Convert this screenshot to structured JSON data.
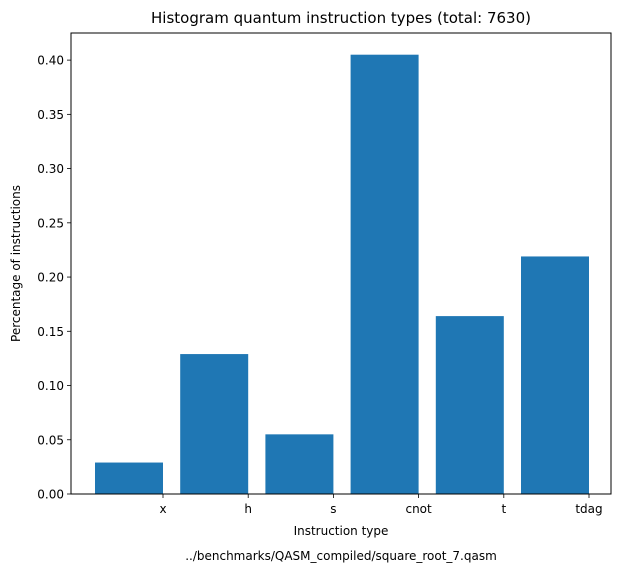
{
  "chart_data": {
    "type": "bar",
    "title": "Histogram quantum instruction types (total: 7630)",
    "xlabel": "Instruction type",
    "ylabel": "Percentage of instructions",
    "footer": "../benchmarks/QASM_compiled/square_root_7.qasm",
    "categories": [
      "x",
      "h",
      "s",
      "cnot",
      "t",
      "tdag"
    ],
    "values": [
      0.029,
      0.129,
      0.055,
      0.405,
      0.164,
      0.219
    ],
    "ylim": [
      0,
      0.425
    ],
    "yticks": [
      0.0,
      0.05,
      0.1,
      0.15,
      0.2,
      0.25,
      0.3,
      0.35,
      0.4
    ],
    "ytick_labels": [
      "0.00",
      "0.05",
      "0.10",
      "0.15",
      "0.20",
      "0.25",
      "0.30",
      "0.35",
      "0.40"
    ],
    "grid": false,
    "legend": "none",
    "bar_color": "#1f77b4"
  }
}
